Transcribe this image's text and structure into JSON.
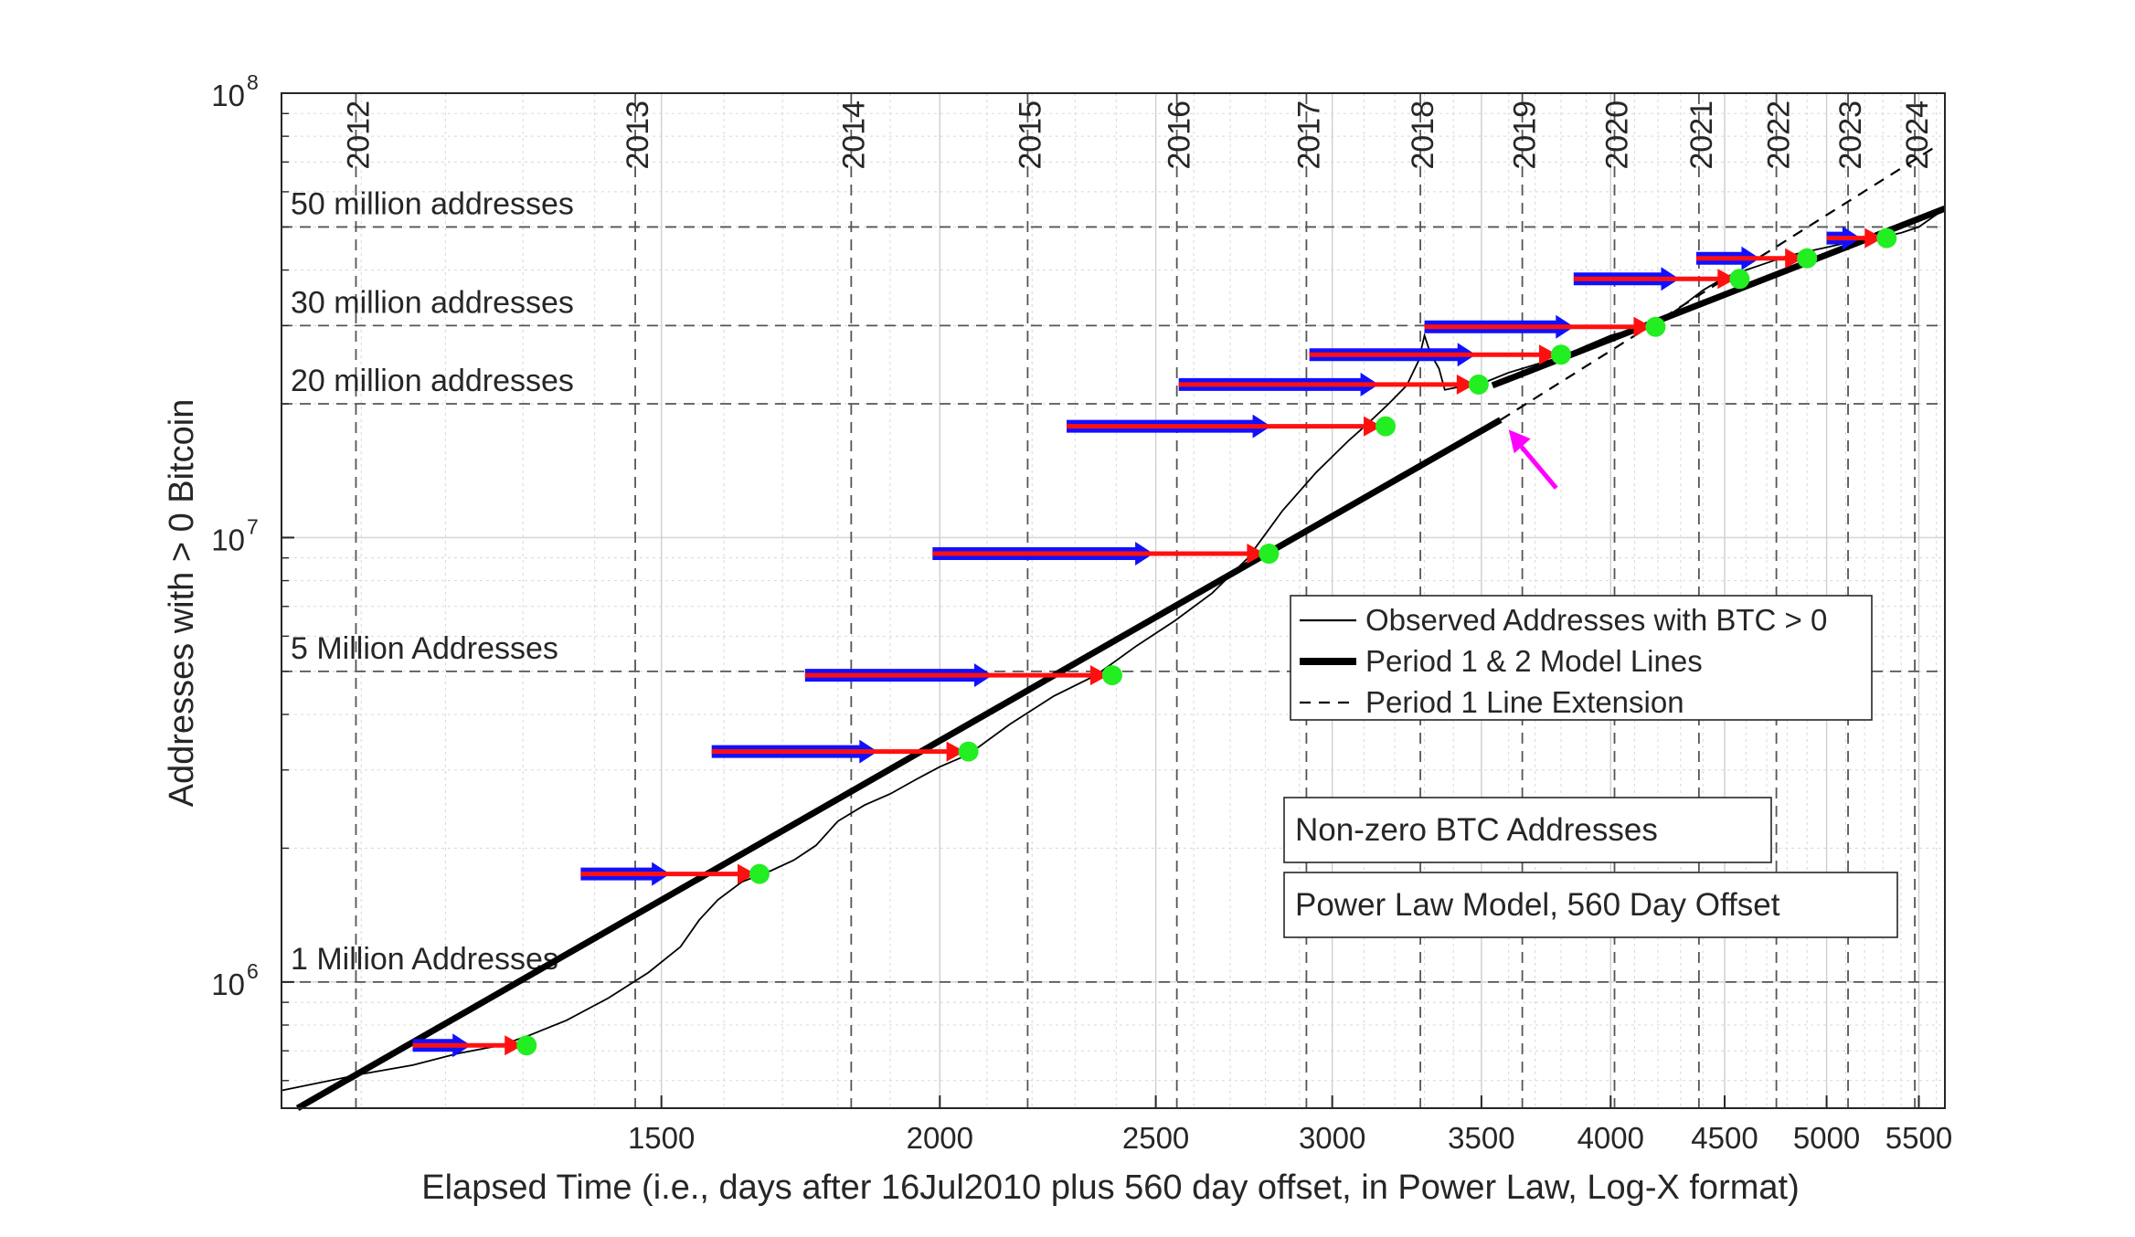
{
  "chart_data": {
    "type": "line",
    "title": "",
    "xlabel": "Elapsed Time (i.e., days after 16Jul2010 plus 560 day offset, in Power Law, Log-X format)",
    "ylabel": "Addresses with > 0 Bitcoin",
    "x_scale": "log",
    "y_scale": "log",
    "xlim": [
      1013,
      5650
    ],
    "ylim": [
      520000,
      100000000
    ],
    "grid": true,
    "x_ticks": [
      {
        "value": 1500,
        "label": "1500"
      },
      {
        "value": 2000,
        "label": "2000"
      },
      {
        "value": 2500,
        "label": "2500"
      },
      {
        "value": 3000,
        "label": "3000"
      },
      {
        "value": 3500,
        "label": "3500"
      },
      {
        "value": 4000,
        "label": "4000"
      },
      {
        "value": 4500,
        "label": "4500"
      },
      {
        "value": 5000,
        "label": "5000"
      },
      {
        "value": 5500,
        "label": "5500"
      }
    ],
    "y_ticks": [
      {
        "value": 1000000,
        "base": "10",
        "exp": "6"
      },
      {
        "value": 10000000,
        "base": "10",
        "exp": "7"
      },
      {
        "value": 100000000,
        "base": "10",
        "exp": "8"
      }
    ],
    "year_lines": [
      {
        "label": "2012",
        "x": 1094
      },
      {
        "label": "2013",
        "x": 1460
      },
      {
        "label": "2014",
        "x": 1825
      },
      {
        "label": "2015",
        "x": 2190
      },
      {
        "label": "2016",
        "x": 2555
      },
      {
        "label": "2017",
        "x": 2921
      },
      {
        "label": "2018",
        "x": 3286
      },
      {
        "label": "2019",
        "x": 3651
      },
      {
        "label": "2020",
        "x": 4016
      },
      {
        "label": "2021",
        "x": 4382
      },
      {
        "label": "2022",
        "x": 4747
      },
      {
        "label": "2023",
        "x": 5112
      },
      {
        "label": "2024",
        "x": 5477
      }
    ],
    "level_lines": [
      {
        "label": "1 Million Addresses",
        "value": 1000000
      },
      {
        "label": "5 Million Addresses",
        "value": 5000000
      },
      {
        "label": "20 million addresses",
        "value": 20000000
      },
      {
        "label": "30 million addresses",
        "value": 30000000
      },
      {
        "label": "50 million addresses",
        "value": 50000000
      }
    ],
    "series": [
      {
        "name": "Observed Addresses with BTC > 0",
        "style": "thin-solid",
        "points": [
          [
            1013,
            570000
          ],
          [
            1100,
            620000
          ],
          [
            1160,
            650000
          ],
          [
            1215,
            690000
          ],
          [
            1270,
            720000
          ],
          [
            1310,
            760000
          ],
          [
            1360,
            820000
          ],
          [
            1420,
            920000
          ],
          [
            1480,
            1050000
          ],
          [
            1530,
            1200000
          ],
          [
            1560,
            1380000
          ],
          [
            1590,
            1530000
          ],
          [
            1630,
            1680000
          ],
          [
            1680,
            1780000
          ],
          [
            1720,
            1880000
          ],
          [
            1760,
            2030000
          ],
          [
            1800,
            2300000
          ],
          [
            1850,
            2500000
          ],
          [
            1900,
            2650000
          ],
          [
            1950,
            2850000
          ],
          [
            2000,
            3050000
          ],
          [
            2060,
            3250000
          ],
          [
            2150,
            3800000
          ],
          [
            2250,
            4400000
          ],
          [
            2350,
            4900000
          ],
          [
            2450,
            5700000
          ],
          [
            2550,
            6500000
          ],
          [
            2650,
            7500000
          ],
          [
            2750,
            9000000
          ],
          [
            2850,
            11500000
          ],
          [
            2950,
            14000000
          ],
          [
            3050,
            16500000
          ],
          [
            3110,
            18000000
          ],
          [
            3180,
            20000000
          ],
          [
            3240,
            22000000
          ],
          [
            3280,
            25000000
          ],
          [
            3300,
            28500000
          ],
          [
            3320,
            26000000
          ],
          [
            3350,
            24000000
          ],
          [
            3370,
            21500000
          ],
          [
            3400,
            21700000
          ],
          [
            3450,
            22000000
          ],
          [
            3500,
            22200000
          ],
          [
            3600,
            23500000
          ],
          [
            3700,
            24500000
          ],
          [
            3800,
            25500000
          ],
          [
            3900,
            27000000
          ],
          [
            4000,
            28500000
          ],
          [
            4100,
            29500000
          ],
          [
            4200,
            30500000
          ],
          [
            4300,
            33000000
          ],
          [
            4400,
            36000000
          ],
          [
            4500,
            38500000
          ],
          [
            4600,
            40000000
          ],
          [
            4700,
            41500000
          ],
          [
            4800,
            43000000
          ],
          [
            4900,
            44000000
          ],
          [
            5000,
            45000000
          ],
          [
            5100,
            46000000
          ],
          [
            5200,
            47000000
          ],
          [
            5300,
            47500000
          ],
          [
            5400,
            48500000
          ],
          [
            5500,
            50000000
          ],
          [
            5650,
            55000000
          ]
        ]
      },
      {
        "name": "Period 1 & 2 Model Lines",
        "style": "thick-solid",
        "segments": [
          [
            [
              1030,
              520000
            ],
            [
              3570,
              18400000
            ]
          ],
          [
            [
              3540,
              22000000
            ],
            [
              5650,
              55000000
            ]
          ]
        ]
      },
      {
        "name": "Period 1 Line Extension",
        "style": "dashed",
        "points": [
          [
            3570,
            18400000
          ],
          [
            5600,
            76000000
          ]
        ]
      }
    ],
    "arrows": [
      {
        "y": 720000,
        "blue_from": 1160,
        "blue_to": 1225,
        "red_from": 1160,
        "red_to": 1305,
        "marker_x": 1305
      },
      {
        "y": 1750000,
        "blue_from": 1380,
        "blue_to": 1505,
        "red_from": 1380,
        "red_to": 1660,
        "marker_x": 1660
      },
      {
        "y": 3300000,
        "blue_from": 1580,
        "blue_to": 1865,
        "red_from": 1580,
        "red_to": 2060,
        "marker_x": 2060
      },
      {
        "y": 4900000,
        "blue_from": 1740,
        "blue_to": 2100,
        "red_from": 1740,
        "red_to": 2390,
        "marker_x": 2390
      },
      {
        "y": 9200000,
        "blue_from": 1985,
        "blue_to": 2480,
        "red_from": 1985,
        "red_to": 2810,
        "marker_x": 2810
      },
      {
        "y": 17800000,
        "blue_from": 2280,
        "blue_to": 2800,
        "red_from": 2280,
        "red_to": 3170,
        "marker_x": 3170
      },
      {
        "y": 22100000,
        "blue_from": 2560,
        "blue_to": 3130,
        "red_from": 2560,
        "red_to": 3490,
        "marker_x": 3490
      },
      {
        "y": 25800000,
        "blue_from": 2930,
        "blue_to": 3460,
        "red_from": 2930,
        "red_to": 3800,
        "marker_x": 3800
      },
      {
        "y": 29800000,
        "blue_from": 3300,
        "blue_to": 3830,
        "red_from": 3300,
        "red_to": 4190,
        "marker_x": 4190
      },
      {
        "y": 38200000,
        "blue_from": 3850,
        "blue_to": 4270,
        "red_from": 3850,
        "red_to": 4570,
        "marker_x": 4570
      },
      {
        "y": 42500000,
        "blue_from": 4370,
        "blue_to": 4640,
        "red_from": 4370,
        "red_to": 4900,
        "marker_x": 4900
      },
      {
        "y": 47200000,
        "blue_from": 5000,
        "blue_to": 5150,
        "red_from": 5000,
        "red_to": 5320,
        "marker_x": 5320
      }
    ],
    "pointer": {
      "x": 3600,
      "y": 17500000,
      "color": "#ff00ff"
    },
    "legend": {
      "placement": "right-middle",
      "items": [
        {
          "label": "Observed Addresses with BTC > 0",
          "style": "thin-solid"
        },
        {
          "label": "Period 1 & 2 Model Lines",
          "style": "thick-solid"
        },
        {
          "label": "Period 1 Line Extension",
          "style": "dashed"
        }
      ]
    },
    "annotations": [
      {
        "text": "Non-zero BTC Addresses"
      },
      {
        "text": "Power Law Model, 560 Day Offset"
      }
    ],
    "colors": {
      "observed": "#000000",
      "model": "#000000",
      "blue_arrow": "#1010ff",
      "red_arrow": "#ff1010",
      "marker": "#22ee22",
      "pointer": "#ff00ff",
      "grid_dashed": "#555555",
      "grid_minor": "#d8d8d8"
    }
  }
}
